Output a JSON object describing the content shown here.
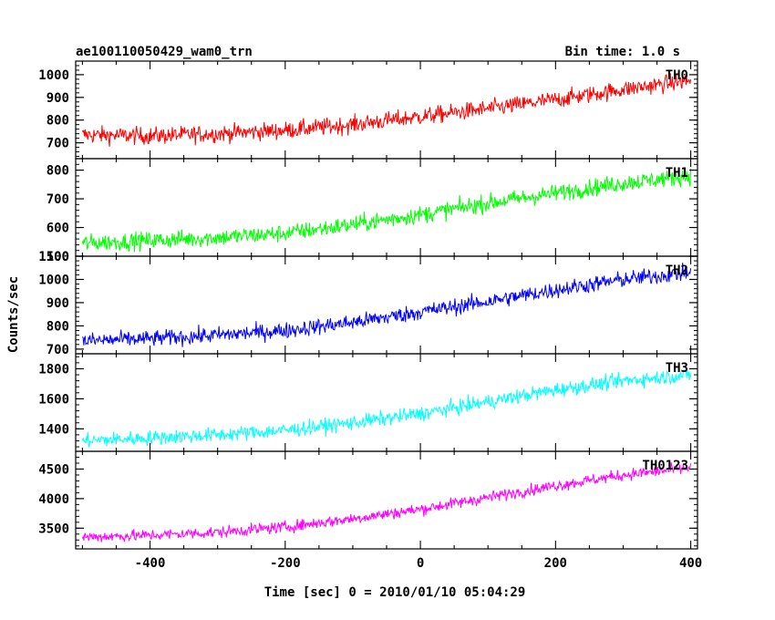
{
  "header": {
    "title": "ae100110050429_wam0_trn",
    "bin_time": "Bin time: 1.0 s"
  },
  "chart_data": {
    "type": "line",
    "xlabel": "Time [sec] 0 = 2010/01/10 05:04:29",
    "ylabel": "Counts/sec",
    "xlim": [
      -510,
      410
    ],
    "xticks": [
      -400,
      -200,
      0,
      200,
      400
    ],
    "panels": [
      {
        "name": "TH0",
        "color": "#ff0000",
        "ylim": [
          630,
          1060
        ],
        "yticks": [
          700,
          800,
          900,
          1000
        ],
        "x": [
          -500,
          -400,
          -300,
          -200,
          -100,
          0,
          100,
          200,
          300,
          400
        ],
        "y": [
          735,
          730,
          740,
          755,
          780,
          815,
          850,
          890,
          935,
          975
        ],
        "noise": 35
      },
      {
        "name": "TH1",
        "color": "#00ff00",
        "ylim": [
          500,
          840
        ],
        "yticks": [
          500,
          600,
          700,
          800
        ],
        "x": [
          -500,
          -400,
          -300,
          -200,
          -100,
          0,
          100,
          200,
          300,
          400
        ],
        "y": [
          545,
          555,
          565,
          580,
          610,
          645,
          685,
          720,
          755,
          780
        ],
        "noise": 28
      },
      {
        "name": "TH2",
        "color": "#0000ff",
        "ylim": [
          680,
          1100
        ],
        "yticks": [
          700,
          800,
          900,
          1000,
          1100
        ],
        "x": [
          -500,
          -400,
          -300,
          -200,
          -100,
          0,
          100,
          200,
          300,
          400
        ],
        "y": [
          735,
          745,
          760,
          780,
          815,
          860,
          905,
          955,
          1000,
          1030
        ],
        "noise": 32
      },
      {
        "name": "TH3",
        "color": "#00ffff",
        "ylim": [
          1250,
          1900
        ],
        "yticks": [
          1400,
          1600,
          1800
        ],
        "x": [
          -500,
          -400,
          -300,
          -200,
          -100,
          0,
          100,
          200,
          300,
          400
        ],
        "y": [
          1320,
          1340,
          1360,
          1390,
          1440,
          1500,
          1580,
          1660,
          1720,
          1760
        ],
        "noise": 45
      },
      {
        "name": "TH0123",
        "color": "#ff00ff",
        "ylim": [
          3150,
          4800
        ],
        "yticks": [
          3500,
          4000,
          4500
        ],
        "x": [
          -500,
          -400,
          -300,
          -200,
          -100,
          0,
          100,
          200,
          300,
          400
        ],
        "y": [
          3350,
          3380,
          3430,
          3520,
          3660,
          3820,
          4020,
          4220,
          4400,
          4520
        ],
        "noise": 90
      }
    ]
  }
}
